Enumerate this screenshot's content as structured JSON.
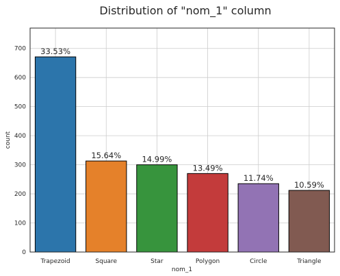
{
  "chart_data": {
    "type": "bar",
    "title": "Distribution of \"nom_1\" column",
    "xlabel": "nom_1",
    "ylabel": "count",
    "categories": [
      "Trapezoid",
      "Square",
      "Star",
      "Polygon",
      "Circle",
      "Triangle"
    ],
    "values": [
      671,
      313,
      300,
      270,
      235,
      212
    ],
    "data_labels": [
      "33.53%",
      "15.64%",
      "14.99%",
      "13.49%",
      "11.74%",
      "10.59%"
    ],
    "colors": [
      "#2c75ab",
      "#e5812a",
      "#37943d",
      "#c33b3b",
      "#9273b4",
      "#815a51"
    ],
    "ylim": [
      0,
      770
    ],
    "yticks": [
      0,
      100,
      200,
      300,
      400,
      500,
      600,
      700
    ],
    "grid": true,
    "legend": "none"
  }
}
